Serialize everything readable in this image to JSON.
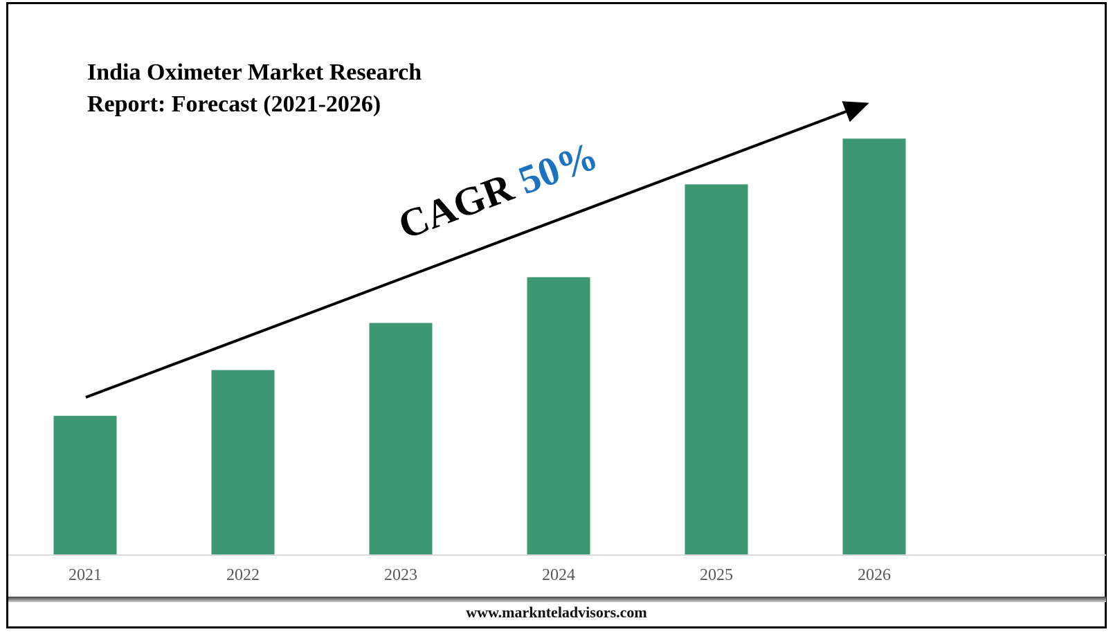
{
  "title_line1": "India Oximeter Market Research",
  "title_line2": "Report: Forecast (2021-2026)",
  "cagr": {
    "label": "CAGR",
    "value": "50%"
  },
  "footer": "www.marknteladvisors.com",
  "colors": {
    "bar": "#3d9772",
    "cagr_value": "#1b72c0",
    "axis": "#d9d9d9",
    "tick_text": "#595959"
  },
  "chart_data": {
    "type": "bar",
    "categories": [
      "2021",
      "2022",
      "2023",
      "2024",
      "2025",
      "2026"
    ],
    "values": [
      2.0,
      2.66,
      3.34,
      4.0,
      5.34,
      6.0
    ],
    "title": "India Oximeter Market Research Report: Forecast (2021-2026)",
    "xlabel": "",
    "ylabel": "",
    "ylim": [
      0,
      8
    ],
    "grid": false,
    "legend": "none",
    "annotations": [
      "CAGR 50%"
    ]
  }
}
